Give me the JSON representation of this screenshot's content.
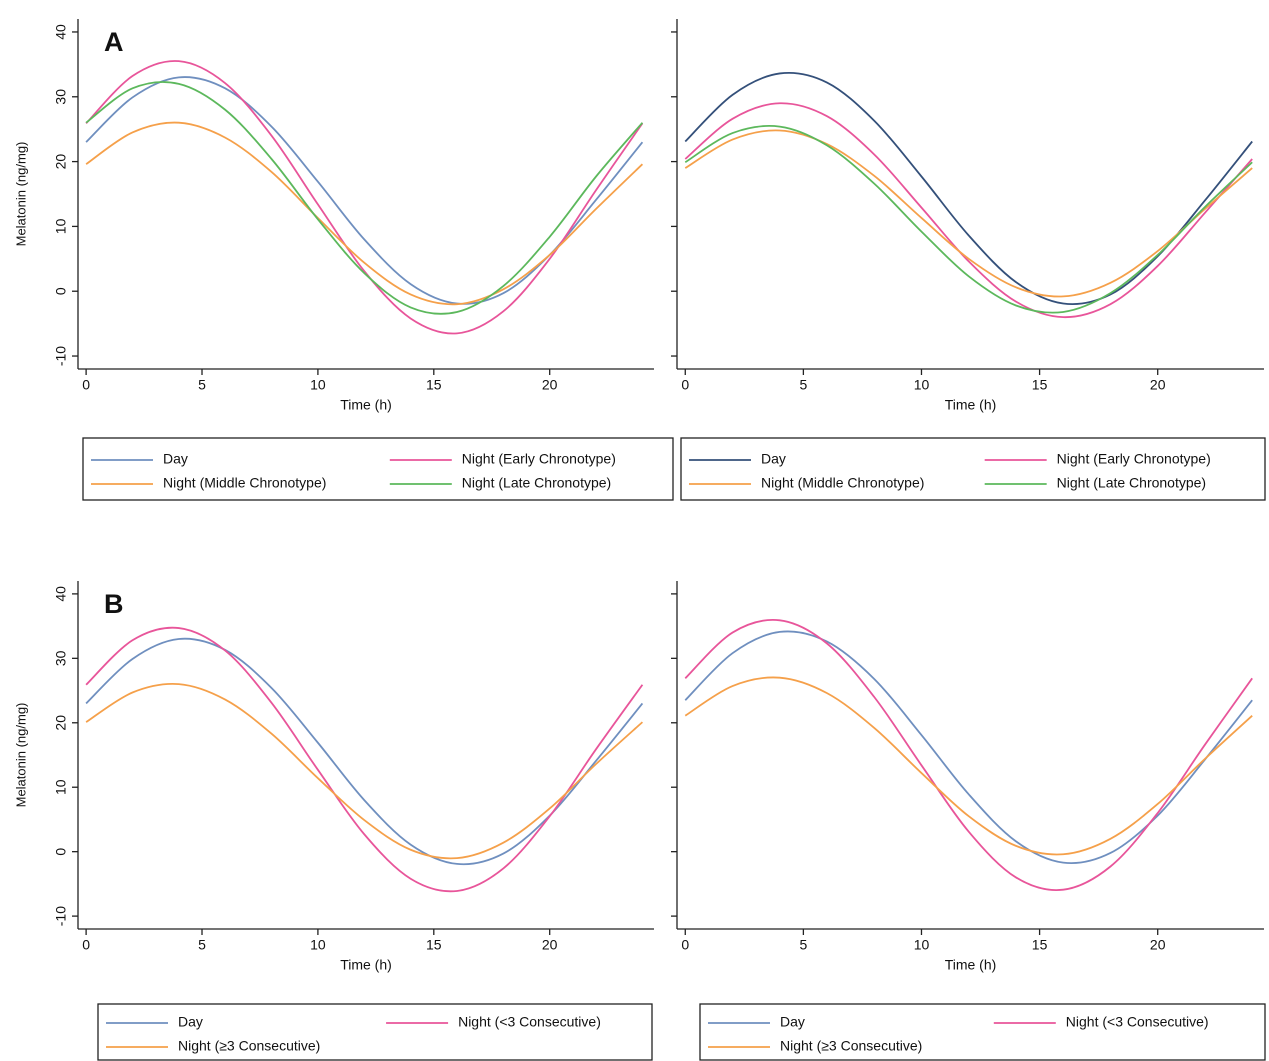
{
  "chart_data": [
    {
      "type": "line",
      "panel_label": "A",
      "ylabel": "Melatonin (ng/mg)",
      "xlabel": "Time (h)",
      "show_ytick_labels": true,
      "x": [
        0,
        2,
        4,
        6,
        8,
        10,
        12,
        14,
        16,
        18,
        20,
        22,
        24
      ],
      "xlim": [
        -0.35,
        24.5
      ],
      "ylim": [
        -12,
        42
      ],
      "xticks": [
        0,
        5,
        10,
        15,
        20
      ],
      "yticks": [
        -10,
        0,
        10,
        20,
        30,
        40
      ],
      "series": [
        {
          "name": "Day",
          "color": "#6f8fbf",
          "values": [
            23.0,
            29.9,
            33.0,
            31.3,
            25.4,
            16.9,
            8.0,
            1.1,
            -1.9,
            -0.3,
            5.6,
            14.1,
            23.0
          ]
        },
        {
          "name": "Night (Early Chronotype)",
          "color": "#e8559a",
          "values": [
            25.9,
            33.2,
            35.5,
            32.1,
            24.0,
            13.4,
            3.1,
            -4.2,
            -6.5,
            -3.1,
            5.0,
            15.6,
            25.9
          ]
        },
        {
          "name": "Night (Middle Chronotype)",
          "color": "#f5a04a",
          "values": [
            19.6,
            24.5,
            26.0,
            23.7,
            18.4,
            11.3,
            4.4,
            -0.5,
            -2.0,
            0.3,
            5.6,
            12.7,
            19.6
          ]
        },
        {
          "name": "Night (Late Chronotype)",
          "color": "#5cb85c",
          "values": [
            26.0,
            31.3,
            32.0,
            28.0,
            20.4,
            11.1,
            2.8,
            -2.5,
            -3.2,
            0.8,
            8.4,
            17.7,
            26.0
          ]
        }
      ]
    },
    {
      "type": "line",
      "xlabel": "Time (h)",
      "show_ytick_labels": false,
      "x": [
        0,
        2,
        4,
        6,
        8,
        10,
        12,
        14,
        16,
        18,
        20,
        22,
        24
      ],
      "xlim": [
        -0.35,
        24.5
      ],
      "ylim": [
        -12,
        42
      ],
      "xticks": [
        0,
        5,
        10,
        15,
        20
      ],
      "yticks": [
        -10,
        0,
        10,
        20,
        30,
        40
      ],
      "series": [
        {
          "name": "Day",
          "color": "#34507a",
          "values": [
            23.1,
            30.3,
            33.6,
            32.2,
            26.3,
            17.7,
            8.6,
            1.4,
            -1.9,
            -0.5,
            5.4,
            14.0,
            23.1
          ]
        },
        {
          "name": "Night (Early Chronotype)",
          "color": "#e8559a",
          "values": [
            20.4,
            26.6,
            29.0,
            27.0,
            21.1,
            12.9,
            4.6,
            -1.6,
            -4.0,
            -2.0,
            3.9,
            12.1,
            20.4
          ]
        },
        {
          "name": "Night (Middle Chronotype)",
          "color": "#f5a04a",
          "values": [
            19.0,
            23.4,
            24.8,
            22.7,
            17.8,
            11.3,
            5.0,
            0.6,
            -0.8,
            1.3,
            6.2,
            12.7,
            19.0
          ]
        },
        {
          "name": "Night (Late Chronotype)",
          "color": "#5cb85c",
          "values": [
            19.9,
            24.4,
            25.4,
            22.5,
            16.6,
            9.2,
            2.3,
            -2.2,
            -3.2,
            -0.3,
            5.6,
            13.0,
            19.9
          ]
        }
      ]
    },
    {
      "type": "line",
      "panel_label": "B",
      "ylabel": "Melatonin (ng/mg)",
      "xlabel": "Time (h)",
      "show_ytick_labels": true,
      "x": [
        0,
        2,
        4,
        6,
        8,
        10,
        12,
        14,
        16,
        18,
        20,
        22,
        24
      ],
      "xlim": [
        -0.35,
        24.5
      ],
      "ylim": [
        -12,
        42
      ],
      "xticks": [
        0,
        5,
        10,
        15,
        20
      ],
      "yticks": [
        -10,
        0,
        10,
        20,
        30,
        40
      ],
      "series": [
        {
          "name": "Day",
          "color": "#6f8fbf",
          "values": [
            23.0,
            29.9,
            33.0,
            31.3,
            25.4,
            16.9,
            8.0,
            1.1,
            -1.9,
            -0.3,
            5.6,
            14.1,
            23.0
          ]
        },
        {
          "name": "Night (<3 Consecutive)",
          "color": "#e8559a",
          "values": [
            25.9,
            32.8,
            34.7,
            31.2,
            23.1,
            12.7,
            2.7,
            -4.2,
            -6.1,
            -2.6,
            5.5,
            15.9,
            25.9
          ]
        },
        {
          "name": "Night (≥3 Consecutive)",
          "color": "#f5a04a",
          "values": [
            20.1,
            24.7,
            26.0,
            23.6,
            18.3,
            11.4,
            4.9,
            0.3,
            -1.0,
            1.4,
            6.7,
            13.6,
            20.1
          ]
        }
      ]
    },
    {
      "type": "line",
      "xlabel": "Time (h)",
      "show_ytick_labels": false,
      "x": [
        0,
        2,
        4,
        6,
        8,
        10,
        12,
        14,
        16,
        18,
        20,
        22,
        24
      ],
      "xlim": [
        -0.35,
        24.5
      ],
      "ylim": [
        -12,
        42
      ],
      "xticks": [
        0,
        5,
        10,
        15,
        20
      ],
      "yticks": [
        -10,
        0,
        10,
        20,
        30,
        40
      ],
      "series": [
        {
          "name": "Day",
          "color": "#6f8fbf",
          "values": [
            23.5,
            30.8,
            34.1,
            32.6,
            26.8,
            18.1,
            8.9,
            1.6,
            -1.7,
            -0.2,
            5.6,
            14.3,
            23.5
          ]
        },
        {
          "name": "Night (<3 Consecutive)",
          "color": "#e8559a",
          "values": [
            26.9,
            34.0,
            35.9,
            32.3,
            24.0,
            13.4,
            3.1,
            -4.0,
            -5.9,
            -2.3,
            6.0,
            16.6,
            26.9
          ]
        },
        {
          "name": "Night (≥3 Consecutive)",
          "color": "#f5a04a",
          "values": [
            21.1,
            25.7,
            27.0,
            24.6,
            19.2,
            12.2,
            5.5,
            0.9,
            -0.4,
            2.0,
            7.4,
            14.4,
            21.1
          ]
        }
      ]
    }
  ]
}
